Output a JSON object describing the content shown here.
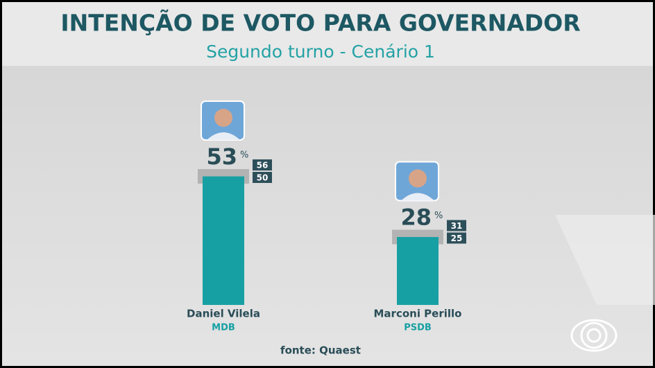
{
  "chart_data": {
    "type": "bar",
    "title": "INTENÇÃO DE VOTO PARA GOVERNADOR",
    "subtitle": "Segundo turno - Cenário 1",
    "categories": [
      "Daniel Vilela",
      "Marconi Perillo"
    ],
    "parties": [
      "MDB",
      "PSDB"
    ],
    "values": [
      53,
      28
    ],
    "unit": "%",
    "upper": [
      56,
      31
    ],
    "lower": [
      50,
      25
    ],
    "color": "#17a0a3",
    "source": "fonte: Quaest"
  }
}
